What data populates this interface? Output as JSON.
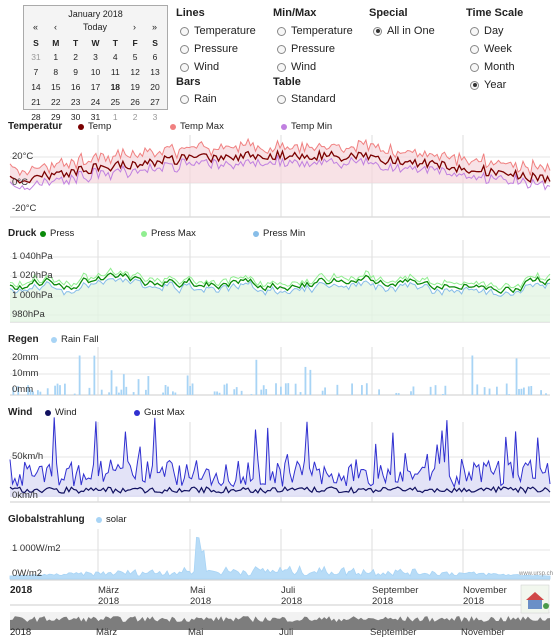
{
  "calendar": {
    "month_label": "January 2018",
    "prev_year": "«",
    "prev_month": "‹",
    "today": "Today",
    "next_month": "›",
    "next_year": "»",
    "weekdays": [
      "S",
      "M",
      "T",
      "W",
      "T",
      "F",
      "S"
    ],
    "weeks": [
      [
        "31",
        "1",
        "2",
        "3",
        "4",
        "5",
        "6"
      ],
      [
        "7",
        "8",
        "9",
        "10",
        "11",
        "12",
        "13"
      ],
      [
        "14",
        "15",
        "16",
        "17",
        "18",
        "19",
        "20"
      ],
      [
        "21",
        "22",
        "23",
        "24",
        "25",
        "26",
        "27"
      ],
      [
        "28",
        "29",
        "30",
        "31",
        "1",
        "2",
        "3"
      ]
    ],
    "selected": "18"
  },
  "controls": {
    "lines": {
      "title": "Lines",
      "options": [
        "Temperature",
        "Pressure",
        "Wind"
      ]
    },
    "bars": {
      "title": "Bars",
      "options": [
        "Rain"
      ]
    },
    "minmax": {
      "title": "Min/Max",
      "options": [
        "Temperature",
        "Pressure",
        "Wind"
      ]
    },
    "table": {
      "title": "Table",
      "options": [
        "Standard"
      ]
    },
    "special": {
      "title": "Special",
      "options": [
        "All in One"
      ]
    },
    "timescale": {
      "title": "Time Scale",
      "options": [
        "Day",
        "Week",
        "Month",
        "Year"
      ]
    }
  },
  "charts": {
    "temp": {
      "title": "Temperatur",
      "legend": [
        "Temp",
        "Temp Max",
        "Temp Min"
      ],
      "ylabels": [
        "20°C",
        "0°C",
        "-20°C"
      ],
      "colors": [
        "#7a0000",
        "#f08080",
        "#c080e0"
      ]
    },
    "press": {
      "title": "Druck",
      "legend": [
        "Press",
        "Press Max",
        "Press Min"
      ],
      "ylabels": [
        "1 040hPa",
        "1 020hPa",
        "1 000hPa",
        "980hPa"
      ],
      "colors": [
        "#0a8a0a",
        "#90ee90",
        "#87bde8"
      ]
    },
    "rain": {
      "title": "Regen",
      "legend": [
        "Rain Fall"
      ],
      "ylabels": [
        "20mm",
        "10mm",
        "0mm"
      ],
      "colors": [
        "#a8d4f5"
      ]
    },
    "wind": {
      "title": "Wind",
      "legend": [
        "Wind",
        "Gust Max"
      ],
      "ylabels": [
        "50km/h",
        "0km/h"
      ],
      "colors": [
        "#101060",
        "#3030d0"
      ]
    },
    "solar": {
      "title": "Globalstrahlung",
      "legend": [
        "solar"
      ],
      "ylabels": [
        "1 000W/m2",
        "0W/m2"
      ],
      "colors": [
        "#a8d4f5"
      ]
    }
  },
  "axis": {
    "year": "2018",
    "months": [
      {
        "top": "März",
        "bottom": "2018"
      },
      {
        "top": "Mai",
        "bottom": "2018"
      },
      {
        "top": "Juli",
        "bottom": "2018"
      },
      {
        "top": "September",
        "bottom": "2018"
      },
      {
        "top": "November",
        "bottom": "2018"
      }
    ],
    "nav_months": [
      "März",
      "Mai",
      "Juli",
      "September",
      "November"
    ],
    "nav_year": "2018",
    "watermark": "www.ursp.ch"
  }
}
